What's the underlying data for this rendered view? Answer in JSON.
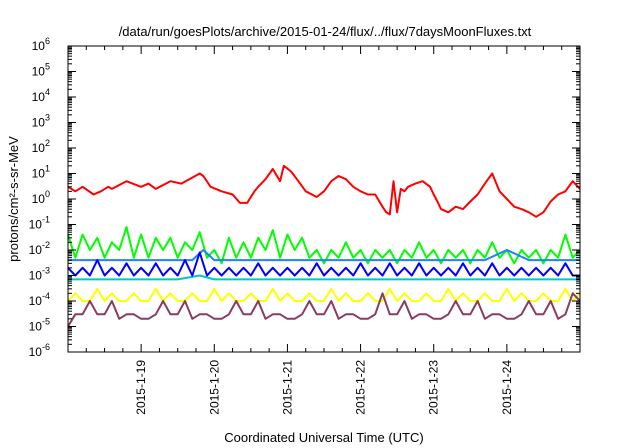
{
  "chart_data": {
    "type": "line",
    "title": "/data/run/goesPlots/archive/2015-01-24/flux/../flux/7daysMoonFluxes.txt",
    "xlabel": "Coordinated Universal Time (UTC)",
    "ylabel": "protons/cm²-s-sr-MeV",
    "yscale": "log",
    "ylim": [
      1e-06,
      1000000.0
    ],
    "xlim": [
      0,
      7
    ],
    "x_tick_labels": [
      {
        "x": 1,
        "label": "2015-1-19"
      },
      {
        "x": 2,
        "label": "2015-1-20"
      },
      {
        "x": 3,
        "label": "2015-1-21"
      },
      {
        "x": 4,
        "label": "2015-1-22"
      },
      {
        "x": 5,
        "label": "2015-1-23"
      },
      {
        "x": 6,
        "label": "2015-1-24"
      }
    ],
    "y_tick_labels": [
      {
        "value": 1e-06,
        "base": "10",
        "exp": "-6"
      },
      {
        "value": 1e-05,
        "base": "10",
        "exp": "-5"
      },
      {
        "value": 0.0001,
        "base": "10",
        "exp": "-4"
      },
      {
        "value": 0.001,
        "base": "10",
        "exp": "-3"
      },
      {
        "value": 0.01,
        "base": "10",
        "exp": "-2"
      },
      {
        "value": 0.1,
        "base": "10",
        "exp": "-1"
      },
      {
        "value": 1,
        "base": "10",
        "exp": "0"
      },
      {
        "value": 10,
        "base": "10",
        "exp": "1"
      },
      {
        "value": 100,
        "base": "10",
        "exp": "2"
      },
      {
        "value": 1000,
        "base": "10",
        "exp": "3"
      },
      {
        "value": 10000,
        "base": "10",
        "exp": "4"
      },
      {
        "value": 100000,
        "base": "10",
        "exp": "5"
      },
      {
        "value": 1000000,
        "base": "10",
        "exp": "6"
      }
    ],
    "grid": false,
    "legend": false,
    "series": [
      {
        "color": "#ff0000",
        "x": [
          0,
          0.1,
          0.2,
          0.35,
          0.45,
          0.55,
          0.6,
          0.8,
          1.0,
          1.1,
          1.2,
          1.4,
          1.55,
          1.8,
          1.85,
          1.95,
          2.1,
          2.25,
          2.35,
          2.45,
          2.55,
          2.6,
          2.7,
          2.8,
          2.9,
          2.95,
          3.05,
          3.15,
          3.25,
          3.4,
          3.5,
          3.6,
          3.7,
          3.8,
          3.9,
          4.0,
          4.1,
          4.2,
          4.3,
          4.35,
          4.4,
          4.45,
          4.5,
          4.55,
          4.6,
          4.65,
          4.75,
          4.85,
          4.95,
          5.0,
          5.05,
          5.1,
          5.2,
          5.3,
          5.4,
          5.5,
          5.6,
          5.7,
          5.8,
          5.9,
          6.0,
          6.1,
          6.2,
          6.3,
          6.4,
          6.5,
          6.6,
          6.7,
          6.8,
          6.9,
          7.0
        ],
        "y": [
          3,
          2,
          3,
          1.5,
          2,
          3,
          2.5,
          5,
          3,
          4,
          2.5,
          5,
          4,
          10,
          8,
          3,
          2,
          1.5,
          0.7,
          0.7,
          2,
          3,
          6,
          15,
          5,
          20,
          12,
          5,
          2,
          1.2,
          2,
          5,
          8,
          6,
          3,
          2,
          1.5,
          1.5,
          0.5,
          0.3,
          0.25,
          5,
          0.3,
          2.5,
          2,
          3,
          4,
          5,
          3,
          1.5,
          0.8,
          0.4,
          0.3,
          0.5,
          0.4,
          0.8,
          1.5,
          4,
          10,
          2,
          1,
          0.5,
          0.4,
          0.3,
          0.2,
          0.3,
          0.8,
          1.5,
          2,
          5,
          2.5
        ]
      },
      {
        "color": "#00ff00",
        "x": [
          0,
          0.1,
          0.2,
          0.3,
          0.4,
          0.5,
          0.6,
          0.7,
          0.8,
          0.9,
          1.0,
          1.1,
          1.2,
          1.3,
          1.4,
          1.5,
          1.6,
          1.7,
          1.8,
          1.9,
          2.0,
          2.1,
          2.2,
          2.3,
          2.4,
          2.5,
          2.6,
          2.7,
          2.8,
          2.9,
          3.0,
          3.1,
          3.2,
          3.3,
          3.4,
          3.5,
          3.6,
          3.7,
          3.8,
          3.9,
          4.0,
          4.1,
          4.2,
          4.3,
          4.4,
          4.5,
          4.6,
          4.7,
          4.8,
          4.9,
          5.0,
          5.1,
          5.2,
          5.3,
          5.4,
          5.5,
          5.6,
          5.7,
          5.8,
          5.9,
          6.0,
          6.1,
          6.2,
          6.3,
          6.4,
          6.5,
          6.6,
          6.7,
          6.8,
          6.9,
          7.0
        ],
        "y": [
          0.04,
          0.005,
          0.04,
          0.01,
          0.03,
          0.005,
          0.02,
          0.01,
          0.08,
          0.005,
          0.04,
          0.005,
          0.03,
          0.01,
          0.03,
          0.005,
          0.02,
          0.01,
          0.05,
          0.005,
          0.01,
          0.003,
          0.03,
          0.005,
          0.02,
          0.005,
          0.03,
          0.01,
          0.06,
          0.005,
          0.04,
          0.01,
          0.03,
          0.005,
          0.01,
          0.003,
          0.01,
          0.005,
          0.02,
          0.005,
          0.01,
          0.003,
          0.01,
          0.005,
          0.01,
          0.003,
          0.01,
          0.005,
          0.02,
          0.005,
          0.01,
          0.003,
          0.01,
          0.005,
          0.01,
          0.003,
          0.01,
          0.005,
          0.02,
          0.005,
          0.01,
          0.003,
          0.01,
          0.005,
          0.01,
          0.003,
          0.01,
          0.005,
          0.04,
          0.005,
          0.01
        ]
      },
      {
        "color": "#00c8c8",
        "x": [
          0,
          0.5,
          1.0,
          1.5,
          1.8,
          2.0,
          2.5,
          3.0,
          3.5,
          4.0,
          4.5,
          5.0,
          5.5,
          6.0,
          6.5,
          7.0
        ],
        "y": [
          0.0007,
          0.0007,
          0.0007,
          0.0007,
          0.001,
          0.0007,
          0.0007,
          0.0007,
          0.0007,
          0.0007,
          0.0007,
          0.0007,
          0.0007,
          0.0007,
          0.0007,
          0.0007
        ]
      },
      {
        "color": "#1e82ff",
        "x": [
          0,
          0.3,
          0.6,
          1.0,
          1.3,
          1.7,
          1.85,
          2.0,
          2.3,
          2.7,
          3.0,
          3.3,
          3.7,
          4.0,
          4.3,
          4.7,
          5.0,
          5.3,
          5.7,
          6.0,
          6.3,
          6.7,
          7.0
        ],
        "y": [
          0.004,
          0.004,
          0.004,
          0.004,
          0.004,
          0.004,
          0.01,
          0.004,
          0.004,
          0.004,
          0.004,
          0.004,
          0.004,
          0.004,
          0.004,
          0.004,
          0.004,
          0.004,
          0.004,
          0.01,
          0.004,
          0.004,
          0.004
        ]
      },
      {
        "color": "#0000ff",
        "x": [
          0,
          0.1,
          0.2,
          0.3,
          0.4,
          0.5,
          0.6,
          0.7,
          0.8,
          0.9,
          1.0,
          1.1,
          1.2,
          1.3,
          1.4,
          1.5,
          1.6,
          1.7,
          1.8,
          1.9,
          2.0,
          2.1,
          2.2,
          2.3,
          2.4,
          2.5,
          2.6,
          2.7,
          2.8,
          2.9,
          3.0,
          3.1,
          3.2,
          3.3,
          3.4,
          3.5,
          3.6,
          3.7,
          3.8,
          3.9,
          4.0,
          4.1,
          4.2,
          4.3,
          4.4,
          4.5,
          4.6,
          4.7,
          4.8,
          4.9,
          5.0,
          5.1,
          5.2,
          5.3,
          5.4,
          5.5,
          5.6,
          5.7,
          5.8,
          5.9,
          6.0,
          6.1,
          6.2,
          6.3,
          6.4,
          6.5,
          6.6,
          6.7,
          6.8,
          6.9,
          7.0
        ],
        "y": [
          0.002,
          0.001,
          0.002,
          0.001,
          0.004,
          0.001,
          0.002,
          0.001,
          0.003,
          0.001,
          0.002,
          0.001,
          0.003,
          0.001,
          0.002,
          0.001,
          0.004,
          0.001,
          0.008,
          0.001,
          0.002,
          0.001,
          0.002,
          0.001,
          0.002,
          0.001,
          0.003,
          0.001,
          0.002,
          0.001,
          0.002,
          0.001,
          0.002,
          0.001,
          0.003,
          0.001,
          0.002,
          0.001,
          0.002,
          0.001,
          0.003,
          0.001,
          0.002,
          0.001,
          0.003,
          0.001,
          0.002,
          0.001,
          0.003,
          0.001,
          0.002,
          0.001,
          0.002,
          0.001,
          0.003,
          0.001,
          0.002,
          0.001,
          0.003,
          0.001,
          0.002,
          0.001,
          0.002,
          0.001,
          0.002,
          0.001,
          0.002,
          0.001,
          0.003,
          0.001,
          0.001
        ]
      },
      {
        "color": "#ffff00",
        "x": [
          0,
          0.1,
          0.2,
          0.3,
          0.4,
          0.5,
          0.6,
          0.7,
          0.8,
          0.9,
          1.0,
          1.1,
          1.2,
          1.3,
          1.4,
          1.5,
          1.6,
          1.7,
          1.8,
          1.9,
          2.0,
          2.1,
          2.2,
          2.3,
          2.4,
          2.5,
          2.6,
          2.7,
          2.8,
          2.9,
          3.0,
          3.1,
          3.2,
          3.3,
          3.4,
          3.5,
          3.6,
          3.7,
          3.8,
          3.9,
          4.0,
          4.1,
          4.2,
          4.3,
          4.4,
          4.5,
          4.6,
          4.7,
          4.8,
          4.9,
          5.0,
          5.1,
          5.2,
          5.3,
          5.4,
          5.5,
          5.6,
          5.7,
          5.8,
          5.9,
          6.0,
          6.1,
          6.2,
          6.3,
          6.4,
          6.5,
          6.6,
          6.7,
          6.8,
          6.9,
          7.0
        ],
        "y": [
          0.0001,
          0.0002,
          0.0001,
          0.0001,
          0.0003,
          0.0001,
          0.0002,
          0.0001,
          0.0001,
          0.0002,
          0.0001,
          0.0001,
          0.0003,
          0.0001,
          0.0002,
          0.0001,
          0.0001,
          0.0002,
          0.0001,
          0.0001,
          0.0003,
          0.0001,
          0.0002,
          0.0001,
          0.0001,
          0.0002,
          0.0001,
          0.0001,
          0.0003,
          0.0001,
          0.0002,
          0.0001,
          0.0001,
          0.0002,
          0.0001,
          0.0001,
          0.0003,
          0.0001,
          0.0002,
          0.0001,
          0.0001,
          0.0002,
          0.0001,
          0.0001,
          0.0003,
          0.0001,
          0.0002,
          0.0001,
          0.0001,
          0.0002,
          0.0001,
          0.0001,
          0.0003,
          0.0001,
          0.0002,
          0.0001,
          0.0001,
          0.0002,
          0.0001,
          0.0001,
          0.0003,
          0.0001,
          0.0002,
          0.0001,
          0.0001,
          0.0002,
          0.0001,
          0.0001,
          0.0003,
          0.0001,
          0.0002
        ]
      },
      {
        "color": "#8b3a62",
        "x": [
          0,
          0.1,
          0.2,
          0.3,
          0.4,
          0.5,
          0.6,
          0.7,
          0.8,
          0.9,
          1.0,
          1.1,
          1.2,
          1.3,
          1.4,
          1.5,
          1.6,
          1.7,
          1.8,
          1.9,
          2.0,
          2.1,
          2.2,
          2.3,
          2.4,
          2.5,
          2.6,
          2.7,
          2.8,
          2.9,
          3.0,
          3.1,
          3.2,
          3.3,
          3.4,
          3.5,
          3.6,
          3.7,
          3.8,
          3.9,
          4.0,
          4.1,
          4.2,
          4.3,
          4.4,
          4.5,
          4.6,
          4.7,
          4.8,
          4.9,
          5.0,
          5.1,
          5.2,
          5.3,
          5.4,
          5.5,
          5.6,
          5.7,
          5.8,
          5.9,
          6.0,
          6.1,
          6.2,
          6.3,
          6.4,
          6.5,
          6.6,
          6.7,
          6.8,
          6.9,
          7.0
        ],
        "y": [
          1e-05,
          3e-05,
          3e-05,
          0.0001,
          3e-05,
          3e-05,
          0.0001,
          2e-05,
          3e-05,
          3e-05,
          2e-05,
          2e-05,
          3e-05,
          0.0001,
          3e-05,
          3e-05,
          0.0001,
          2e-05,
          3e-05,
          3e-05,
          2e-05,
          2e-05,
          3e-05,
          0.0001,
          3e-05,
          3e-05,
          0.0001,
          2e-05,
          3e-05,
          3e-05,
          2e-05,
          2e-05,
          3e-05,
          0.0001,
          3e-05,
          3e-05,
          0.0001,
          2e-05,
          3e-05,
          3e-05,
          2e-05,
          2e-05,
          3e-05,
          0.0002,
          3e-05,
          3e-05,
          0.0001,
          2e-05,
          3e-05,
          3e-05,
          2e-05,
          2e-05,
          3e-05,
          0.0001,
          3e-05,
          3e-05,
          0.0001,
          2e-05,
          3e-05,
          3e-05,
          2e-05,
          2e-05,
          3e-05,
          0.0001,
          3e-05,
          3e-05,
          0.0001,
          2e-05,
          3e-05,
          0.0002,
          0.0001
        ]
      }
    ]
  }
}
